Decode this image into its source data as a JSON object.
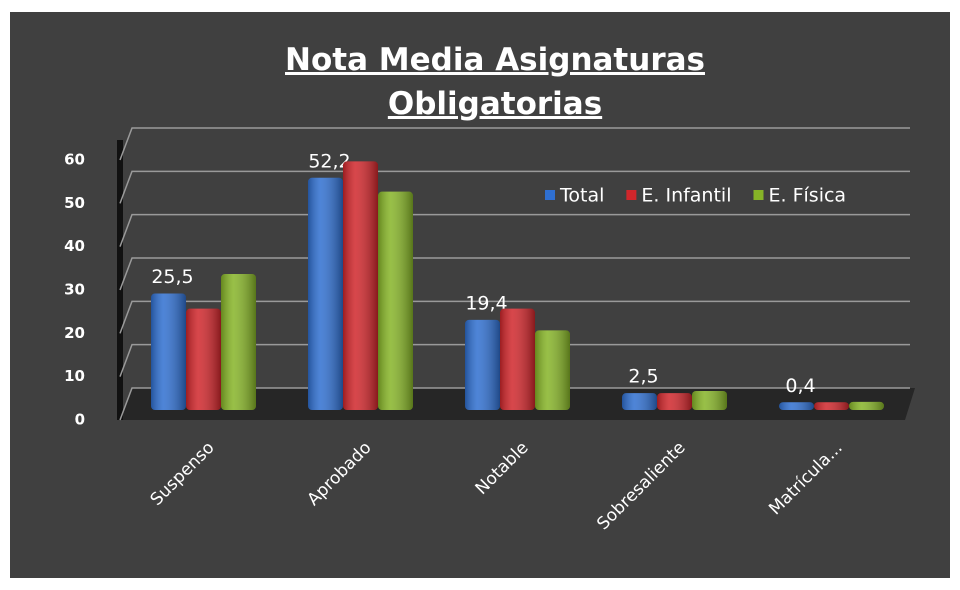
{
  "chart_data": {
    "type": "bar",
    "title": "Nota Media Asignaturas Obligatorias",
    "categories": [
      "Suspenso",
      "Aprobado",
      "Notable",
      "Sobresaliente",
      "Matrícula..."
    ],
    "series": [
      {
        "name": "Total",
        "color": "#2f6fd0",
        "values": [
          25.5,
          52.2,
          19.4,
          2.5,
          0.4
        ],
        "value_labels": [
          "25,5",
          "52,2",
          "19,4",
          "2,5",
          "0,4"
        ]
      },
      {
        "name": "E. Infantil",
        "color": "#d0262b",
        "values": [
          22,
          56,
          22,
          2.5,
          0.4
        ]
      },
      {
        "name": "E. Física",
        "color": "#86b427",
        "values": [
          30,
          49,
          17,
          3,
          0.5
        ]
      }
    ],
    "ylim": [
      0,
      60
    ],
    "yticks": [
      0,
      10,
      20,
      30,
      40,
      50,
      60
    ],
    "grid": true,
    "legend": "top-right"
  }
}
